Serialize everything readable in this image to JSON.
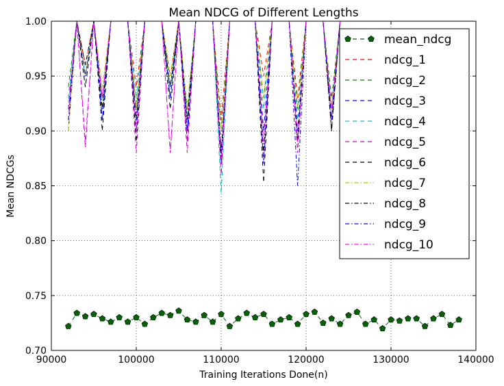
{
  "chart_data": {
    "type": "line",
    "title": "Mean NDCG of Different Lengths",
    "xlabel": "Training Iterations Done(n)",
    "ylabel": "Mean NDCGs",
    "xlim": [
      90000,
      140000
    ],
    "ylim": [
      0.7,
      1.0
    ],
    "xticks": [
      90000,
      100000,
      110000,
      120000,
      130000,
      140000
    ],
    "xtick_labels": [
      "90000",
      "100000",
      "110000",
      "120000",
      "130000",
      "140000"
    ],
    "yticks": [
      0.7,
      0.75,
      0.8,
      0.85,
      0.9,
      0.95,
      1.0
    ],
    "ytick_labels": [
      "0.70",
      "0.75",
      "0.80",
      "0.85",
      "0.90",
      "0.95",
      "1.00"
    ],
    "grid": true,
    "legend_position": "top-right",
    "x": [
      92000,
      93000,
      94000,
      95000,
      96000,
      97000,
      98000,
      99000,
      100000,
      101000,
      102000,
      103000,
      104000,
      105000,
      106000,
      107000,
      108000,
      109000,
      110000,
      111000,
      112000,
      113000,
      114000,
      115000,
      116000,
      117000,
      118000,
      119000,
      120000,
      121000,
      122000,
      123000,
      124000,
      125000,
      126000,
      127000,
      128000,
      129000,
      130000,
      131000,
      132000,
      133000,
      134000,
      135000,
      136000,
      137000,
      138000
    ],
    "series": [
      {
        "name": "mean_ndcg",
        "color": "#006400",
        "style": "dashed-marker",
        "values": [
          0.722,
          0.734,
          0.731,
          0.733,
          0.729,
          0.726,
          0.73,
          0.726,
          0.73,
          0.724,
          0.73,
          0.734,
          0.732,
          0.736,
          0.728,
          0.726,
          0.732,
          0.726,
          0.733,
          0.722,
          0.729,
          0.734,
          0.73,
          0.733,
          0.724,
          0.728,
          0.73,
          0.724,
          0.733,
          0.735,
          0.725,
          0.729,
          0.724,
          0.732,
          0.735,
          0.724,
          0.728,
          0.72,
          0.728,
          0.727,
          0.729,
          0.729,
          0.722,
          0.729,
          0.733,
          0.723,
          0.728
        ]
      },
      {
        "name": "ndcg_1",
        "color": "#ff0000",
        "style": "dashed",
        "values": [
          0.93,
          1.0,
          0.96,
          1.0,
          0.92,
          1.0,
          1.0,
          1.0,
          0.94,
          1.0,
          1.0,
          1.0,
          0.95,
          1.0,
          0.91,
          1.0,
          1.0,
          1.0,
          0.91,
          1.0,
          1.0,
          1.0,
          1.0,
          0.95,
          1.0,
          1.0,
          1.0,
          0.93,
          1.0,
          1.0,
          1.0,
          0.92,
          1.0,
          1.0,
          1.0,
          1.0,
          1.0,
          1.0,
          1.0,
          1.0,
          1.0,
          1.0,
          1.0,
          1.0,
          1.0,
          1.0,
          1.0
        ]
      },
      {
        "name": "ndcg_2",
        "color": "#008000",
        "style": "dashed",
        "values": [
          0.94,
          1.0,
          0.95,
          1.0,
          0.93,
          1.0,
          1.0,
          1.0,
          0.92,
          1.0,
          1.0,
          1.0,
          0.94,
          1.0,
          0.92,
          1.0,
          1.0,
          1.0,
          0.9,
          1.0,
          1.0,
          1.0,
          1.0,
          0.93,
          1.0,
          1.0,
          1.0,
          0.92,
          1.0,
          1.0,
          1.0,
          0.93,
          1.0,
          1.0,
          1.0,
          1.0,
          1.0,
          1.0,
          1.0,
          1.0,
          1.0,
          1.0,
          1.0,
          1.0,
          1.0,
          1.0,
          1.0
        ]
      },
      {
        "name": "ndcg_3",
        "color": "#0000ff",
        "style": "dashed",
        "values": [
          0.92,
          1.0,
          0.94,
          1.0,
          0.91,
          1.0,
          1.0,
          1.0,
          0.91,
          1.0,
          1.0,
          1.0,
          0.93,
          1.0,
          0.9,
          1.0,
          1.0,
          1.0,
          0.88,
          1.0,
          1.0,
          1.0,
          1.0,
          0.9,
          1.0,
          1.0,
          1.0,
          0.9,
          1.0,
          1.0,
          1.0,
          0.91,
          1.0,
          1.0,
          1.0,
          1.0,
          1.0,
          1.0,
          1.0,
          1.0,
          1.0,
          1.0,
          1.0,
          1.0,
          1.0,
          1.0,
          1.0
        ]
      },
      {
        "name": "ndcg_4",
        "color": "#00bfbf",
        "style": "dashed",
        "values": [
          0.93,
          1.0,
          0.95,
          1.0,
          0.92,
          1.0,
          1.0,
          1.0,
          0.93,
          1.0,
          1.0,
          1.0,
          0.94,
          1.0,
          0.91,
          1.0,
          1.0,
          1.0,
          0.843,
          1.0,
          1.0,
          1.0,
          1.0,
          0.92,
          1.0,
          1.0,
          1.0,
          0.91,
          1.0,
          1.0,
          1.0,
          0.92,
          1.0,
          1.0,
          1.0,
          1.0,
          1.0,
          1.0,
          1.0,
          1.0,
          1.0,
          1.0,
          1.0,
          1.0,
          1.0,
          1.0,
          1.0
        ]
      },
      {
        "name": "ndcg_5",
        "color": "#bf00bf",
        "style": "dashed",
        "values": [
          0.91,
          1.0,
          0.885,
          1.0,
          0.93,
          1.0,
          1.0,
          1.0,
          0.88,
          1.0,
          1.0,
          1.0,
          0.88,
          1.0,
          0.88,
          1.0,
          1.0,
          1.0,
          0.86,
          1.0,
          1.0,
          1.0,
          1.0,
          0.87,
          1.0,
          1.0,
          1.0,
          0.88,
          1.0,
          1.0,
          1.0,
          0.91,
          1.0,
          1.0,
          1.0,
          1.0,
          1.0,
          1.0,
          1.0,
          1.0,
          1.0,
          1.0,
          1.0,
          1.0,
          1.0,
          1.0,
          1.0
        ]
      },
      {
        "name": "ndcg_6",
        "color": "#000000",
        "style": "dashed",
        "values": [
          0.9,
          1.0,
          0.94,
          1.0,
          0.9,
          1.0,
          1.0,
          1.0,
          0.89,
          1.0,
          1.0,
          1.0,
          0.92,
          1.0,
          0.89,
          1.0,
          1.0,
          1.0,
          0.87,
          1.0,
          1.0,
          1.0,
          1.0,
          0.853,
          1.0,
          1.0,
          1.0,
          0.89,
          1.0,
          1.0,
          1.0,
          0.9,
          1.0,
          1.0,
          1.0,
          1.0,
          1.0,
          1.0,
          1.0,
          1.0,
          1.0,
          1.0,
          1.0,
          1.0,
          1.0,
          1.0,
          1.0
        ]
      },
      {
        "name": "ndcg_7",
        "color": "#bfbf00",
        "style": "dashdot",
        "values": [
          0.9,
          1.0,
          0.95,
          1.0,
          0.94,
          1.0,
          1.0,
          1.0,
          0.92,
          1.0,
          1.0,
          1.0,
          0.95,
          1.0,
          0.92,
          1.0,
          1.0,
          1.0,
          0.9,
          1.0,
          1.0,
          1.0,
          1.0,
          0.93,
          1.0,
          1.0,
          1.0,
          0.92,
          1.0,
          1.0,
          1.0,
          0.92,
          1.0,
          1.0,
          1.0,
          1.0,
          1.0,
          1.0,
          1.0,
          1.0,
          1.0,
          1.0,
          1.0,
          1.0,
          1.0,
          1.0,
          1.0
        ]
      },
      {
        "name": "ndcg_8",
        "color": "#000000",
        "style": "dashdot",
        "values": [
          0.92,
          1.0,
          0.96,
          1.0,
          0.92,
          1.0,
          1.0,
          1.0,
          0.91,
          1.0,
          1.0,
          1.0,
          0.94,
          1.0,
          0.91,
          1.0,
          1.0,
          1.0,
          0.88,
          1.0,
          1.0,
          1.0,
          1.0,
          0.88,
          1.0,
          1.0,
          1.0,
          0.89,
          1.0,
          1.0,
          1.0,
          0.9,
          1.0,
          1.0,
          1.0,
          1.0,
          1.0,
          1.0,
          1.0,
          1.0,
          1.0,
          1.0,
          1.0,
          1.0,
          1.0,
          1.0,
          1.0
        ]
      },
      {
        "name": "ndcg_9",
        "color": "#0000ff",
        "style": "dashdot",
        "values": [
          0.91,
          1.0,
          0.95,
          1.0,
          0.91,
          1.0,
          1.0,
          1.0,
          0.9,
          1.0,
          1.0,
          1.0,
          0.93,
          1.0,
          0.9,
          1.0,
          1.0,
          1.0,
          0.87,
          1.0,
          1.0,
          1.0,
          1.0,
          0.87,
          1.0,
          1.0,
          1.0,
          0.85,
          1.0,
          1.0,
          1.0,
          0.91,
          1.0,
          1.0,
          1.0,
          1.0,
          1.0,
          1.0,
          1.0,
          1.0,
          1.0,
          1.0,
          1.0,
          1.0,
          1.0,
          1.0,
          1.0
        ]
      },
      {
        "name": "ndcg_10",
        "color": "#ff00ff",
        "style": "dashdot",
        "values": [
          0.92,
          1.0,
          0.89,
          1.0,
          0.93,
          1.0,
          1.0,
          1.0,
          0.9,
          1.0,
          1.0,
          1.0,
          0.88,
          1.0,
          0.89,
          1.0,
          1.0,
          1.0,
          0.87,
          1.0,
          1.0,
          1.0,
          1.0,
          0.89,
          1.0,
          1.0,
          1.0,
          0.89,
          1.0,
          1.0,
          1.0,
          0.92,
          1.0,
          1.0,
          1.0,
          1.0,
          1.0,
          1.0,
          1.0,
          1.0,
          1.0,
          1.0,
          1.0,
          1.0,
          1.0,
          1.0,
          1.0
        ]
      }
    ]
  }
}
